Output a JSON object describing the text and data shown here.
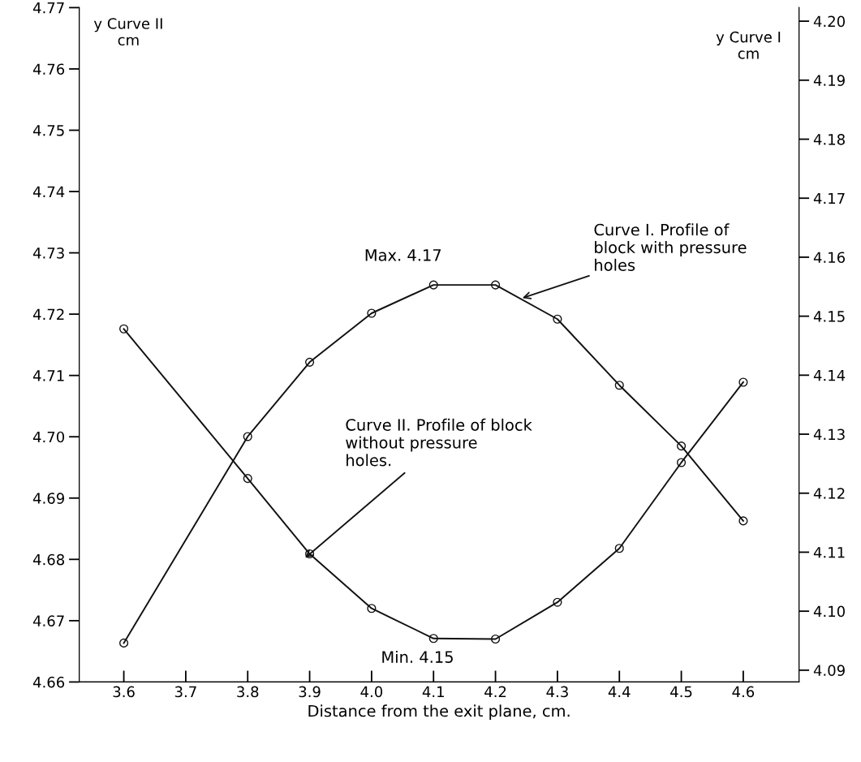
{
  "chart_data": {
    "type": "line",
    "xlabel": "Distance from the exit plane, cm.",
    "ylabel": "y Curve II\ncm",
    "y2label": "y Curve I\ncm",
    "x": [
      3.6,
      3.8,
      3.9,
      4.0,
      4.1,
      4.2,
      4.3,
      4.4,
      4.5,
      4.6
    ],
    "series": [
      {
        "axis": "y2",
        "color": "#111111",
        "values": [
          4.0946,
          4.1296,
          4.1422,
          4.1505,
          4.1553,
          4.1553,
          4.1495,
          4.1383,
          4.128,
          4.1153
        ]
      },
      {
        "axis": "y",
        "color": "#111111",
        "values": [
          4.7176,
          4.6932,
          4.6809,
          4.672,
          4.6671,
          4.667,
          4.673,
          4.6818,
          4.6958,
          4.7089
        ]
      }
    ],
    "marker": "circle",
    "line_style": "solid",
    "grid": false,
    "xlim": [
      3.528,
      4.69
    ],
    "xticks": [
      3.6,
      3.7,
      3.8,
      3.9,
      {
        "value": 4.0,
        "label": "4.0"
      },
      4.1,
      4.2,
      4.3,
      4.4,
      4.5,
      4.6
    ],
    "ylim": [
      4.66,
      4.77
    ],
    "yticks": [
      4.66,
      4.67,
      4.68,
      4.69,
      {
        "value": 4.7,
        "label": "4.70"
      },
      4.71,
      4.72,
      4.73,
      4.74,
      4.75,
      4.76,
      4.77
    ],
    "y2lim": [
      4.088,
      4.2023
    ],
    "y2ticks": [
      4.09,
      {
        "value": 4.1,
        "label": "4.10"
      },
      4.11,
      4.12,
      4.13,
      4.14,
      4.15,
      4.16,
      4.17,
      4.18,
      4.19,
      {
        "value": 4.2,
        "label": "4.20"
      }
    ],
    "annotations": [
      "Max. 4.17",
      "Min. 4.15",
      {
        "text": "Curve I. Profile of\nblock with pressure\nholes",
        "x": 4.24,
        "y": 4.7225
      },
      {
        "text": "Curve II. Profile of block\nwithout pressure\nholes.",
        "x": 3.89,
        "y": 4.68
      }
    ]
  }
}
